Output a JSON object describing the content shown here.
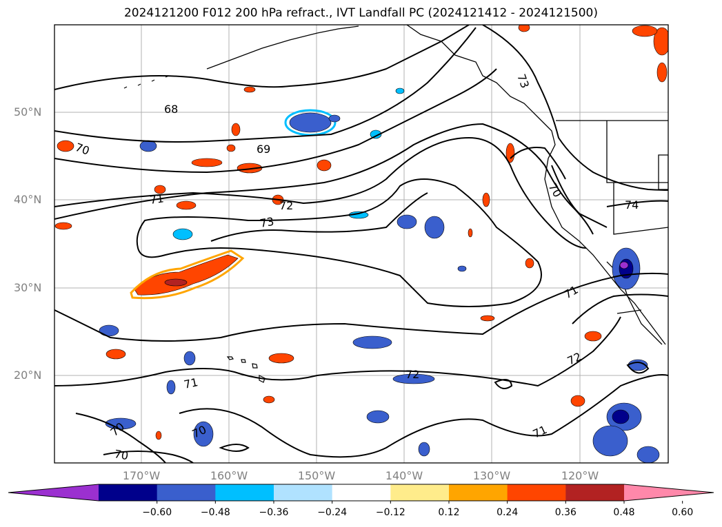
{
  "title": "2024121200 F012 200 hPa refract., IVT Landfall PC (2024121412 - 2024121500)",
  "lat_labels": [
    "50°N",
    "40°N",
    "30°N",
    "20°N"
  ],
  "lon_labels": [
    "170°W",
    "160°W",
    "150°W",
    "140°W",
    "130°W",
    "120°W"
  ],
  "contour_labels": [
    "68",
    "69",
    "70",
    "70",
    "70",
    "70",
    "70",
    "71",
    "71",
    "71",
    "71",
    "72",
    "72",
    "72",
    "73",
    "73",
    "74"
  ],
  "colorbar": {
    "ticks": [
      "−0.60",
      "−0.48",
      "−0.36",
      "−0.24",
      "−0.12",
      "0.12",
      "0.24",
      "0.36",
      "0.48",
      "0.60"
    ],
    "colors": [
      "#9b30d0",
      "#00008b",
      "#3a5fcd",
      "#00bfff",
      "#b0e2ff",
      "#ffffff",
      "#ffec8b",
      "#ffa500",
      "#ff4500",
      "#b22222",
      "#ff88aa"
    ]
  },
  "colors": {
    "negative_core": "#3a5fcd",
    "negative_edge": "#00bfff",
    "positive_core": "#ff4500",
    "positive_edge": "#ffa500",
    "contour": "#000000",
    "grid": "#b0b0b0"
  }
}
